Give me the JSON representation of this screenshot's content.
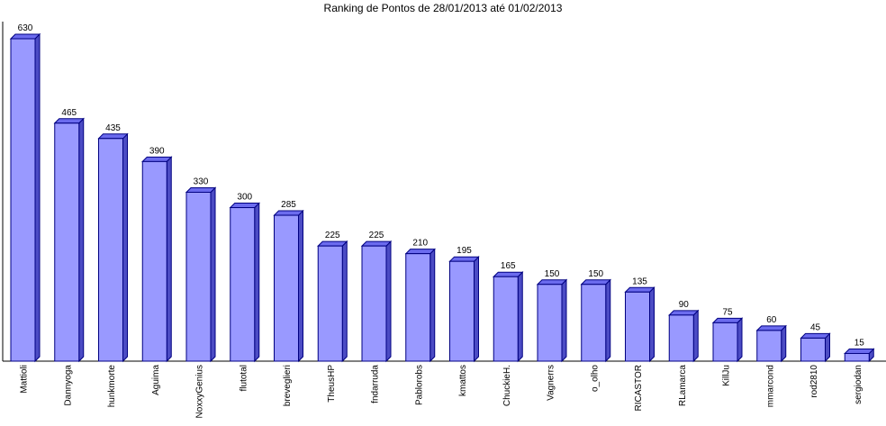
{
  "chart_data": {
    "type": "bar",
    "title": "Ranking de Pontos de 28/01/2013 até 01/02/2013",
    "categories": [
      "Mattioli",
      "Dannyoga",
      "hunkmorte",
      "Aguima",
      "NoxxyGenius",
      "flutotal",
      "breveglieri",
      "TheusHP",
      "fndarruda",
      "Pablorobs",
      "kmattos",
      "ChuckieH.",
      "Vagnerrs",
      "o_olho",
      "RICASTOR",
      "RLamarca",
      "KillJu",
      "mmarcond",
      "rod2810",
      "sergiodan"
    ],
    "values": [
      630,
      465,
      435,
      390,
      330,
      300,
      285,
      225,
      225,
      210,
      195,
      165,
      150,
      150,
      135,
      90,
      75,
      60,
      45,
      15
    ],
    "color": "#9999ff"
  }
}
